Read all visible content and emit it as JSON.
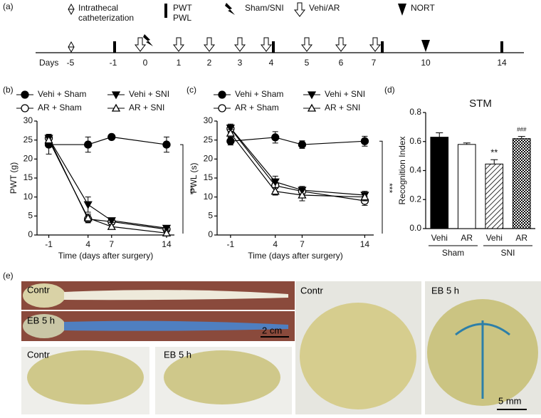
{
  "panel_labels": [
    "(a)",
    "(b)",
    "(c)",
    "(d)",
    "(e)"
  ],
  "timeline": {
    "legend": [
      "Intrathecal",
      "catheterization",
      "PWT",
      "PWL",
      "Sham/SNI",
      "Vehi/AR",
      "NORT"
    ],
    "days_label": "Days",
    "days": [
      "-5",
      "-1",
      "0",
      "1",
      "2",
      "3",
      "4",
      "5",
      "6",
      "7",
      "10",
      "14"
    ]
  },
  "chart_data": [
    {
      "type": "line",
      "xlabel": "Time (days after surgery)",
      "ylabel": "PWT (g)",
      "x": [
        -1,
        4,
        7,
        14
      ],
      "xlim": [
        -2.5,
        15
      ],
      "xticks": [
        -1,
        4,
        7,
        14
      ],
      "ylim": [
        0,
        30
      ],
      "yticks": [
        0,
        5,
        10,
        15,
        20,
        25,
        30
      ],
      "annotation": "***",
      "series": [
        {
          "name": "Vehi + Sham",
          "marker": "circle",
          "fill": "#000",
          "values": [
            23.8,
            23.8,
            25.8,
            23.8
          ],
          "errors": [
            2.5,
            2,
            0.5,
            2
          ]
        },
        {
          "name": "AR + Sham",
          "marker": "circle",
          "fill": "#fff",
          "values": [
            25.5,
            4.2,
            3.5,
            1.5
          ],
          "errors": [
            1,
            1,
            0.5,
            0.5
          ]
        },
        {
          "name": "Vehi + SNI",
          "marker": "triangle-down",
          "fill": "#000",
          "values": [
            25.5,
            8,
            3.8,
            1.8
          ],
          "errors": [
            1,
            2,
            0.5,
            0.5
          ]
        },
        {
          "name": "AR + SNI",
          "marker": "triangle-up",
          "fill": "#fff",
          "values": [
            25,
            4.5,
            2.2,
            0.5
          ],
          "errors": [
            1,
            1,
            0.5,
            0.5
          ]
        }
      ]
    },
    {
      "type": "line",
      "xlabel": "Time (days after surgery)",
      "ylabel": "PWL (s)",
      "x": [
        -1,
        4,
        7,
        14
      ],
      "xlim": [
        -2.5,
        15
      ],
      "xticks": [
        -1,
        4,
        7,
        14
      ],
      "ylim": [
        0,
        30
      ],
      "yticks": [
        0,
        5,
        10,
        15,
        20,
        25,
        30
      ],
      "annotation": "***",
      "series": [
        {
          "name": "Vehi + Sham",
          "marker": "circle",
          "fill": "#000",
          "values": [
            24.7,
            25.7,
            23.8,
            24.7
          ],
          "errors": [
            1,
            1.5,
            1,
            1.3
          ]
        },
        {
          "name": "AR + Sham",
          "marker": "circle",
          "fill": "#fff",
          "values": [
            28,
            13,
            11.5,
            9
          ],
          "errors": [
            1,
            1.5,
            1,
            1.2
          ]
        },
        {
          "name": "Vehi + SNI",
          "marker": "triangle-down",
          "fill": "#000",
          "values": [
            28.2,
            14,
            11.8,
            10.5
          ],
          "errors": [
            1,
            1.5,
            1,
            1
          ]
        },
        {
          "name": "AR + SNI",
          "marker": "triangle-up",
          "fill": "#fff",
          "values": [
            26.8,
            11.5,
            10.5,
            10
          ],
          "errors": [
            1,
            1,
            1.5,
            1
          ]
        }
      ]
    },
    {
      "type": "bar",
      "title": "STM",
      "ylabel": "Recognition Index",
      "categories": [
        "Vehi",
        "AR",
        "Vehi",
        "AR"
      ],
      "groups": [
        "Sham",
        "SNI"
      ],
      "values": [
        0.63,
        0.58,
        0.445,
        0.62
      ],
      "errors": [
        0.03,
        0.01,
        0.03,
        0.015
      ],
      "fills": [
        "solid",
        "open",
        "hatch",
        "checker"
      ],
      "value_annotations": [
        null,
        null,
        "**",
        "###"
      ],
      "ylim": [
        0,
        0.8
      ],
      "yticks": [
        {
          "value": 0,
          "label": "0.0"
        },
        0.2,
        0.4,
        0.6,
        0.8
      ]
    }
  ],
  "photos": {
    "labels": [
      "Contr",
      "EB 5 h",
      "2 cm",
      "Contr",
      "EB 5 h",
      "Contr",
      "EB 5 h",
      "5 mm"
    ]
  }
}
